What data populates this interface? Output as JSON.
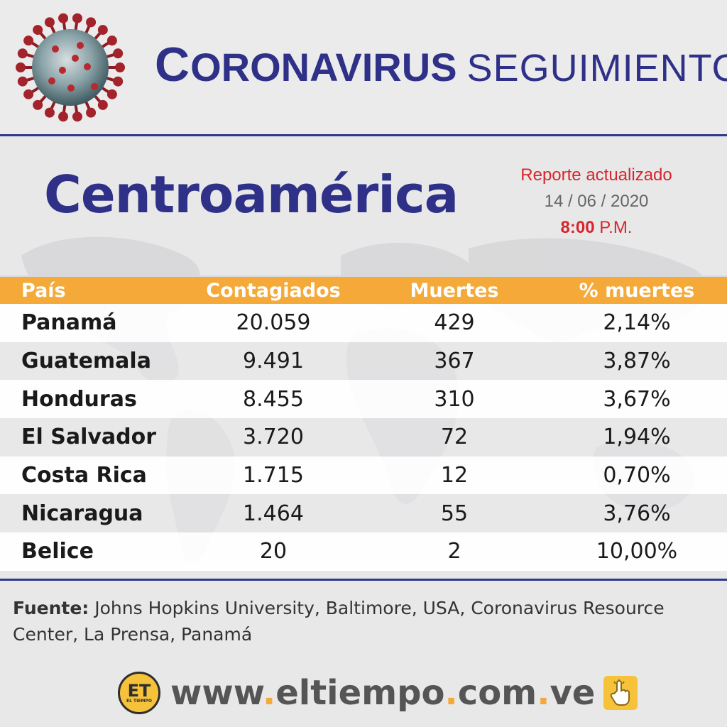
{
  "header": {
    "title_main": "CORONAVIRUS",
    "title_sub": "SEGUIMIENTO"
  },
  "region": "Centroamérica",
  "report": {
    "line1": "Reporte actualizado",
    "date": "14 / 06 / 2020",
    "time": "8:00",
    "ampm": "P.M."
  },
  "chart_data": {
    "type": "table",
    "columns": [
      "País",
      "Contagiados",
      "Muertes",
      "% muertes"
    ],
    "rows": [
      [
        "Panamá",
        "20.059",
        "429",
        "2,14%"
      ],
      [
        "Guatemala",
        "9.491",
        "367",
        "3,87%"
      ],
      [
        "Honduras",
        "8.455",
        "310",
        "3,67%"
      ],
      [
        "El Salvador",
        "3.720",
        "72",
        "1,94%"
      ],
      [
        "Costa Rica",
        "1.715",
        "12",
        "0,70%"
      ],
      [
        "Nicaragua",
        "1.464",
        "55",
        "3,76%"
      ],
      [
        "Belice",
        "20",
        "2",
        "10,00%"
      ]
    ]
  },
  "source": {
    "label": "Fuente:",
    "text": " Johns Hopkins University, Baltimore, USA, Coronavirus Resource Center, La Prensa, Panamá"
  },
  "footer": {
    "logo": "ET",
    "logo_sub": "EL TIEMPO",
    "url_parts": [
      "www",
      ".",
      "eltiempo",
      ".",
      "com",
      ".",
      "ve"
    ],
    "hand_icon": "pointing-hand-icon"
  },
  "colors": {
    "navy": "#2e3187",
    "orange": "#f4a938",
    "red": "#d7262b"
  }
}
